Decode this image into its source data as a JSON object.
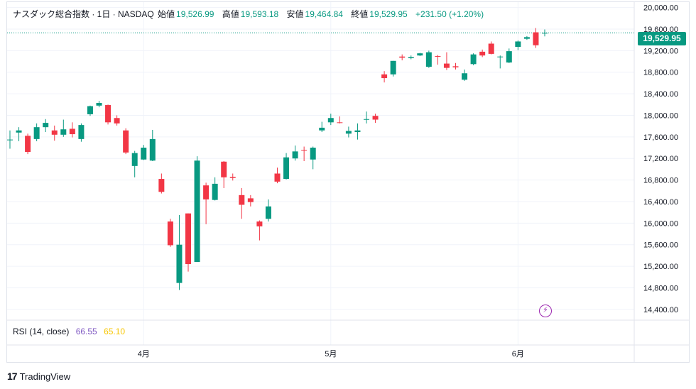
{
  "header": {
    "title": "ナスダック総合指数 · 1日 · NASDAQ",
    "open_label": "始値",
    "open": "19,526.99",
    "high_label": "高値",
    "high": "19,593.18",
    "low_label": "安値",
    "low": "19,464.84",
    "close_label": "終値",
    "close": "19,529.95",
    "change": "+231.50 (+1.20%)"
  },
  "rsi": {
    "label": "RSI (14, close)",
    "value": "66.55",
    "signal": "65.10"
  },
  "last_price_label": "19,529.95",
  "brand": "TradingView",
  "colors": {
    "up": "#089981",
    "down": "#f23645",
    "rsi": "#7e57c2",
    "rsi_signal": "#f7c600"
  },
  "icons": {
    "alert": "lightning-icon",
    "logo": "tradingview-logo-icon"
  },
  "chart_data": {
    "type": "candlestick",
    "y_axis": {
      "min": 14200,
      "max": 20100,
      "ticks": [
        20000,
        19600,
        19200,
        18800,
        18400,
        18000,
        17600,
        17200,
        16800,
        16400,
        16000,
        15600,
        15200,
        14800,
        14400
      ],
      "tick_labels": [
        "20,000.00",
        "19,600.00",
        "19,200.00",
        "18,800.00",
        "18,400.00",
        "18,000.00",
        "17,600.00",
        "17,200.00",
        "16,800.00",
        "16,400.00",
        "16,000.00",
        "15,600.00",
        "15,200.00",
        "14,800.00",
        "14,400.00"
      ]
    },
    "x_axis": {
      "labels": [
        {
          "label": "4月",
          "index": 15
        },
        {
          "label": "5月",
          "index": 36
        },
        {
          "label": "6月",
          "index": 57
        }
      ]
    },
    "last_price": 19529.95,
    "candles": [
      {
        "o": 17550,
        "h": 17720,
        "l": 17380,
        "c": 17550
      },
      {
        "o": 17680,
        "h": 17780,
        "l": 17520,
        "c": 17720
      },
      {
        "o": 17620,
        "h": 17660,
        "l": 17280,
        "c": 17320
      },
      {
        "o": 17560,
        "h": 17850,
        "l": 17520,
        "c": 17780
      },
      {
        "o": 17780,
        "h": 17930,
        "l": 17690,
        "c": 17860
      },
      {
        "o": 17720,
        "h": 17810,
        "l": 17530,
        "c": 17640
      },
      {
        "o": 17640,
        "h": 17920,
        "l": 17600,
        "c": 17740
      },
      {
        "o": 17750,
        "h": 17870,
        "l": 17590,
        "c": 17650
      },
      {
        "o": 17560,
        "h": 17850,
        "l": 17510,
        "c": 17820
      },
      {
        "o": 18020,
        "h": 18180,
        "l": 17990,
        "c": 18170
      },
      {
        "o": 18180,
        "h": 18270,
        "l": 18150,
        "c": 18230
      },
      {
        "o": 18190,
        "h": 18200,
        "l": 17830,
        "c": 17870
      },
      {
        "o": 17950,
        "h": 18000,
        "l": 17810,
        "c": 17850
      },
      {
        "o": 17720,
        "h": 17760,
        "l": 17280,
        "c": 17310
      },
      {
        "o": 17060,
        "h": 17340,
        "l": 16850,
        "c": 17300
      },
      {
        "o": 17180,
        "h": 17450,
        "l": 17170,
        "c": 17400
      },
      {
        "o": 17160,
        "h": 17730,
        "l": 17150,
        "c": 17560
      },
      {
        "o": 16820,
        "h": 16920,
        "l": 16550,
        "c": 16580
      },
      {
        "o": 16030,
        "h": 16080,
        "l": 15560,
        "c": 15590
      },
      {
        "o": 14890,
        "h": 16150,
        "l": 14760,
        "c": 15600
      },
      {
        "o": 16180,
        "h": 16180,
        "l": 15100,
        "c": 15240
      },
      {
        "o": 15280,
        "h": 17240,
        "l": 15280,
        "c": 17160
      },
      {
        "o": 16700,
        "h": 16750,
        "l": 15980,
        "c": 16440
      },
      {
        "o": 16430,
        "h": 16850,
        "l": 16420,
        "c": 16730
      },
      {
        "o": 17140,
        "h": 17150,
        "l": 16650,
        "c": 16850
      },
      {
        "o": 16860,
        "h": 16920,
        "l": 16790,
        "c": 16840
      },
      {
        "o": 16520,
        "h": 16650,
        "l": 16080,
        "c": 16340
      },
      {
        "o": 16460,
        "h": 16520,
        "l": 16310,
        "c": 16390
      },
      {
        "o": 16030,
        "h": 16050,
        "l": 15680,
        "c": 15940
      },
      {
        "o": 16080,
        "h": 16440,
        "l": 16030,
        "c": 16310
      },
      {
        "o": 16920,
        "h": 17030,
        "l": 16740,
        "c": 16770
      },
      {
        "o": 16820,
        "h": 17300,
        "l": 16810,
        "c": 17220
      },
      {
        "o": 17200,
        "h": 17440,
        "l": 17160,
        "c": 17330
      },
      {
        "o": 17360,
        "h": 17420,
        "l": 17150,
        "c": 17350
      },
      {
        "o": 17180,
        "h": 17420,
        "l": 17000,
        "c": 17400
      },
      {
        "o": 17720,
        "h": 17880,
        "l": 17690,
        "c": 17770
      },
      {
        "o": 17870,
        "h": 18030,
        "l": 17820,
        "c": 17950
      },
      {
        "o": 17870,
        "h": 17980,
        "l": 17850,
        "c": 17860
      },
      {
        "o": 17660,
        "h": 17790,
        "l": 17590,
        "c": 17710
      },
      {
        "o": 17690,
        "h": 17850,
        "l": 17550,
        "c": 17720
      },
      {
        "o": 17920,
        "h": 18070,
        "l": 17850,
        "c": 17930
      },
      {
        "o": 17990,
        "h": 18030,
        "l": 17860,
        "c": 17920
      },
      {
        "o": 18760,
        "h": 18820,
        "l": 18610,
        "c": 18690
      },
      {
        "o": 18760,
        "h": 19010,
        "l": 18720,
        "c": 19010
      },
      {
        "o": 19090,
        "h": 19130,
        "l": 19020,
        "c": 19070
      },
      {
        "o": 19060,
        "h": 19110,
        "l": 19040,
        "c": 19080
      },
      {
        "o": 19110,
        "h": 19160,
        "l": 19100,
        "c": 19150
      },
      {
        "o": 18900,
        "h": 19200,
        "l": 18880,
        "c": 19170
      },
      {
        "o": 19100,
        "h": 19120,
        "l": 18940,
        "c": 19090
      },
      {
        "o": 18960,
        "h": 19170,
        "l": 18840,
        "c": 18880
      },
      {
        "o": 18910,
        "h": 18970,
        "l": 18850,
        "c": 18890
      },
      {
        "o": 18660,
        "h": 18850,
        "l": 18640,
        "c": 18780
      },
      {
        "o": 18950,
        "h": 19150,
        "l": 18930,
        "c": 19130
      },
      {
        "o": 19180,
        "h": 19220,
        "l": 19080,
        "c": 19110
      },
      {
        "o": 19330,
        "h": 19370,
        "l": 19130,
        "c": 19140
      },
      {
        "o": 19090,
        "h": 19110,
        "l": 18870,
        "c": 19090
      },
      {
        "o": 18980,
        "h": 19240,
        "l": 18970,
        "c": 19190
      },
      {
        "o": 19270,
        "h": 19390,
        "l": 19210,
        "c": 19370
      },
      {
        "o": 19420,
        "h": 19470,
        "l": 19400,
        "c": 19450
      },
      {
        "o": 19540,
        "h": 19620,
        "l": 19250,
        "c": 19300
      },
      {
        "o": 19527,
        "h": 19593,
        "l": 19465,
        "c": 19530
      }
    ]
  }
}
